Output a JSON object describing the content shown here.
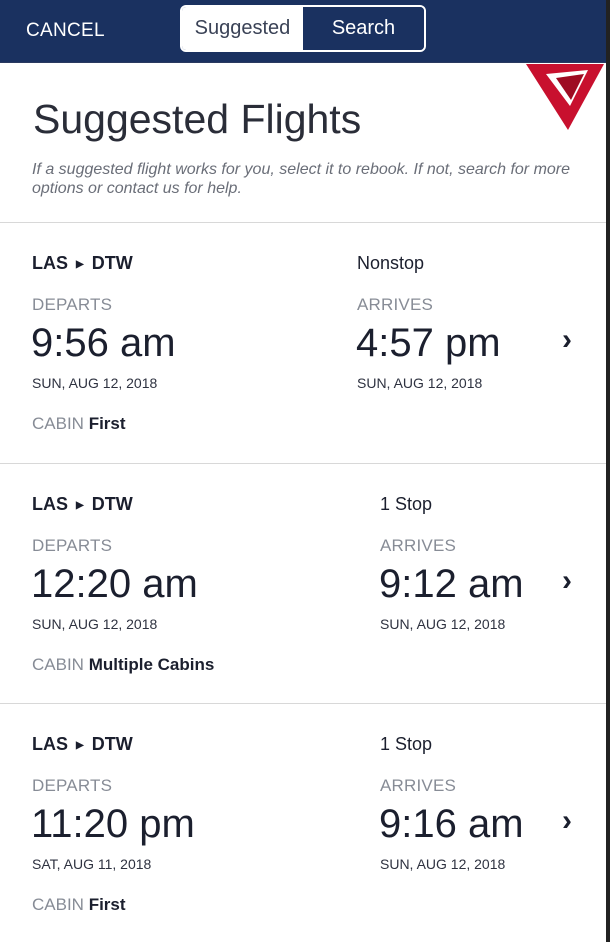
{
  "header": {
    "cancel": "CANCEL",
    "tabs": [
      {
        "label": "Suggested",
        "active": true
      },
      {
        "label": "Search",
        "active": false
      }
    ]
  },
  "colors": {
    "header": "#1a3160",
    "logo": "#c8102e"
  },
  "page": {
    "title": "Suggested Flights",
    "description": "If a suggested flight works for you, select it to rebook. If not, search for more options or contact us for help."
  },
  "labels": {
    "departs": "DEPARTS",
    "arrives": "ARRIVES",
    "cabin": "CABIN"
  },
  "flights": [
    {
      "origin": "LAS",
      "destination": "DTW",
      "stops": "Nonstop",
      "depart_time": "9:56 am",
      "depart_date": "SUN, AUG 12, 2018",
      "arrive_time": "4:57 pm",
      "arrive_date": "SUN, AUG 12, 2018",
      "cabin": "First"
    },
    {
      "origin": "LAS",
      "destination": "DTW",
      "stops": "1 Stop",
      "depart_time": "12:20 am",
      "depart_date": "SUN, AUG 12, 2018",
      "arrive_time": "9:12 am",
      "arrive_date": "SUN, AUG 12, 2018",
      "cabin": "Multiple Cabins"
    },
    {
      "origin": "LAS",
      "destination": "DTW",
      "stops": "1 Stop",
      "depart_time": "11:20 pm",
      "depart_date": "SAT, AUG 11, 2018",
      "arrive_time": "9:16 am",
      "arrive_date": "SUN, AUG 12, 2018",
      "cabin": "First"
    }
  ]
}
